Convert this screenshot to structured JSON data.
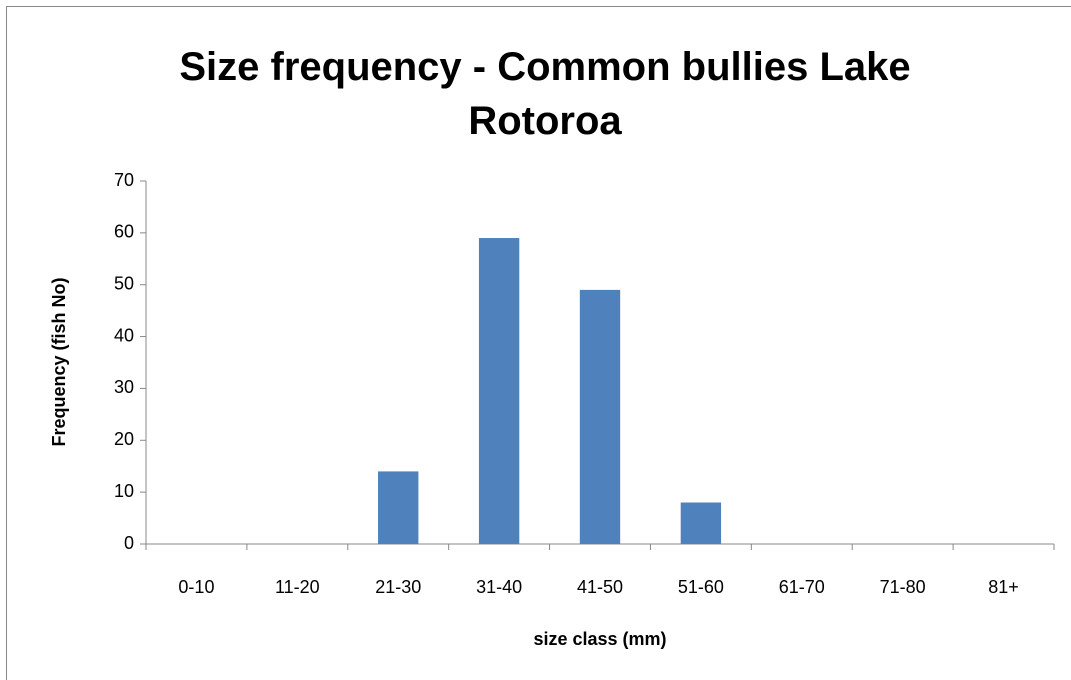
{
  "chart_data": {
    "type": "bar",
    "title": "Size frequency - Common bullies Lake Rotoroa",
    "x_label": "size class (mm)",
    "y_label": "Frequency (fish No)",
    "categories": [
      "0-10",
      "11-20",
      "21-30",
      "31-40",
      "41-50",
      "51-60",
      "61-70",
      "71-80",
      "81+"
    ],
    "values": [
      0,
      0,
      14,
      59,
      49,
      8,
      0,
      0,
      0
    ],
    "color": "#4f81bd",
    "ylim": [
      0,
      70
    ],
    "yticks": [
      0,
      10,
      20,
      30,
      40,
      50,
      60,
      70
    ],
    "grid": false
  }
}
